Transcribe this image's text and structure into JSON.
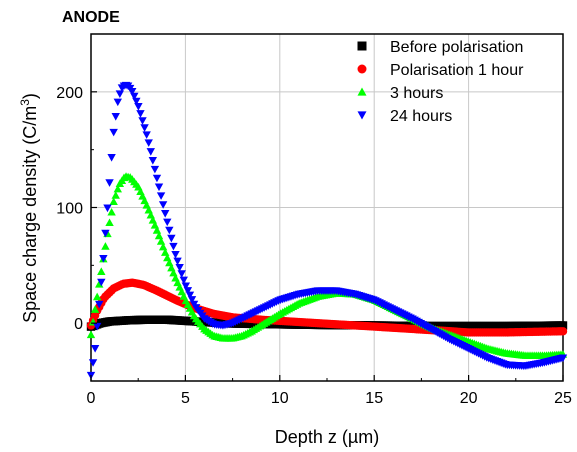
{
  "chart_data": {
    "type": "scatter",
    "title": "ANODE",
    "xlabel": "Depth z (µm)",
    "ylabel_main": "Space charge density (C/m",
    "ylabel_sup": "3",
    "ylabel_close": ")",
    "xlim": [
      0,
      25
    ],
    "ylim": [
      -50,
      250
    ],
    "x_ticks": [
      0,
      5,
      10,
      15,
      20,
      25
    ],
    "y_ticks": [
      0,
      100,
      200
    ],
    "grid": true,
    "legend_position": "top-right",
    "series": [
      {
        "name": "Before polarisation",
        "marker": "square",
        "color": "#000000",
        "points": [
          [
            0,
            -3
          ],
          [
            0.5,
            0
          ],
          [
            1,
            1.5
          ],
          [
            2,
            2.5
          ],
          [
            3,
            3
          ],
          [
            4,
            3
          ],
          [
            5,
            2
          ],
          [
            6,
            1
          ],
          [
            7,
            0
          ],
          [
            8,
            -0.5
          ],
          [
            10,
            -1
          ],
          [
            12,
            -1.5
          ],
          [
            15,
            -2
          ],
          [
            18,
            -2.5
          ],
          [
            20,
            -2.5
          ],
          [
            22,
            -2.5
          ],
          [
            25,
            -2
          ]
        ]
      },
      {
        "name": "Polarisation 1 hour",
        "marker": "circle",
        "color": "#ff0000",
        "points": [
          [
            0,
            -2
          ],
          [
            0.3,
            10
          ],
          [
            0.7,
            22
          ],
          [
            1.2,
            30
          ],
          [
            1.7,
            34
          ],
          [
            2.2,
            35
          ],
          [
            2.8,
            33
          ],
          [
            3.5,
            28
          ],
          [
            4.5,
            20
          ],
          [
            5.5,
            13
          ],
          [
            6.5,
            8
          ],
          [
            7.5,
            5
          ],
          [
            9,
            3
          ],
          [
            10,
            2
          ],
          [
            11,
            1
          ],
          [
            12,
            0
          ],
          [
            13,
            -1
          ],
          [
            14,
            -2
          ],
          [
            15,
            -3
          ],
          [
            16,
            -4
          ],
          [
            17,
            -5
          ],
          [
            18,
            -6
          ],
          [
            19,
            -7
          ],
          [
            20,
            -8
          ],
          [
            22,
            -8
          ],
          [
            25,
            -7
          ]
        ]
      },
      {
        "name": "3 hours",
        "marker": "triangle-up",
        "color": "#00ff00",
        "points": [
          [
            0,
            -10
          ],
          [
            0.3,
            20
          ],
          [
            0.6,
            50
          ],
          [
            0.9,
            80
          ],
          [
            1.2,
            105
          ],
          [
            1.5,
            120
          ],
          [
            1.8,
            127
          ],
          [
            2.1,
            126
          ],
          [
            2.5,
            118
          ],
          [
            3,
            100
          ],
          [
            3.5,
            80
          ],
          [
            4,
            58
          ],
          [
            4.5,
            38
          ],
          [
            5,
            20
          ],
          [
            5.5,
            5
          ],
          [
            6,
            -5
          ],
          [
            6.5,
            -11
          ],
          [
            7,
            -13
          ],
          [
            7.5,
            -13
          ],
          [
            8,
            -11
          ],
          [
            8.5,
            -7
          ],
          [
            9,
            -2
          ],
          [
            10,
            8
          ],
          [
            11,
            17
          ],
          [
            12,
            23
          ],
          [
            13,
            26
          ],
          [
            14,
            25
          ],
          [
            15,
            20
          ],
          [
            16,
            12
          ],
          [
            17,
            4
          ],
          [
            18,
            -4
          ],
          [
            19,
            -10
          ],
          [
            20,
            -16
          ],
          [
            21,
            -22
          ],
          [
            22,
            -26
          ],
          [
            23,
            -28
          ],
          [
            24,
            -28
          ],
          [
            25,
            -27
          ]
        ]
      },
      {
        "name": "24 hours",
        "marker": "triangle-down",
        "color": "#0000ff",
        "points": [
          [
            0,
            -45
          ],
          [
            0.2,
            -25
          ],
          [
            0.4,
            10
          ],
          [
            0.6,
            45
          ],
          [
            0.8,
            85
          ],
          [
            1,
            125
          ],
          [
            1.2,
            165
          ],
          [
            1.4,
            190
          ],
          [
            1.6,
            203
          ],
          [
            1.8,
            206
          ],
          [
            2,
            205
          ],
          [
            2.2,
            200
          ],
          [
            2.5,
            188
          ],
          [
            3,
            160
          ],
          [
            3.5,
            125
          ],
          [
            4,
            90
          ],
          [
            4.5,
            58
          ],
          [
            5,
            33
          ],
          [
            5.5,
            15
          ],
          [
            6,
            4
          ],
          [
            6.5,
            -1
          ],
          [
            7,
            -2
          ],
          [
            7.5,
            0
          ],
          [
            8,
            4
          ],
          [
            9,
            12
          ],
          [
            10,
            20
          ],
          [
            11,
            25
          ],
          [
            12,
            28
          ],
          [
            13,
            28
          ],
          [
            14,
            25
          ],
          [
            15,
            20
          ],
          [
            16,
            12
          ],
          [
            17,
            4
          ],
          [
            18,
            -5
          ],
          [
            19,
            -14
          ],
          [
            20,
            -22
          ],
          [
            21,
            -30
          ],
          [
            22,
            -36
          ],
          [
            23,
            -37
          ],
          [
            24,
            -34
          ],
          [
            25,
            -30
          ]
        ]
      }
    ]
  }
}
